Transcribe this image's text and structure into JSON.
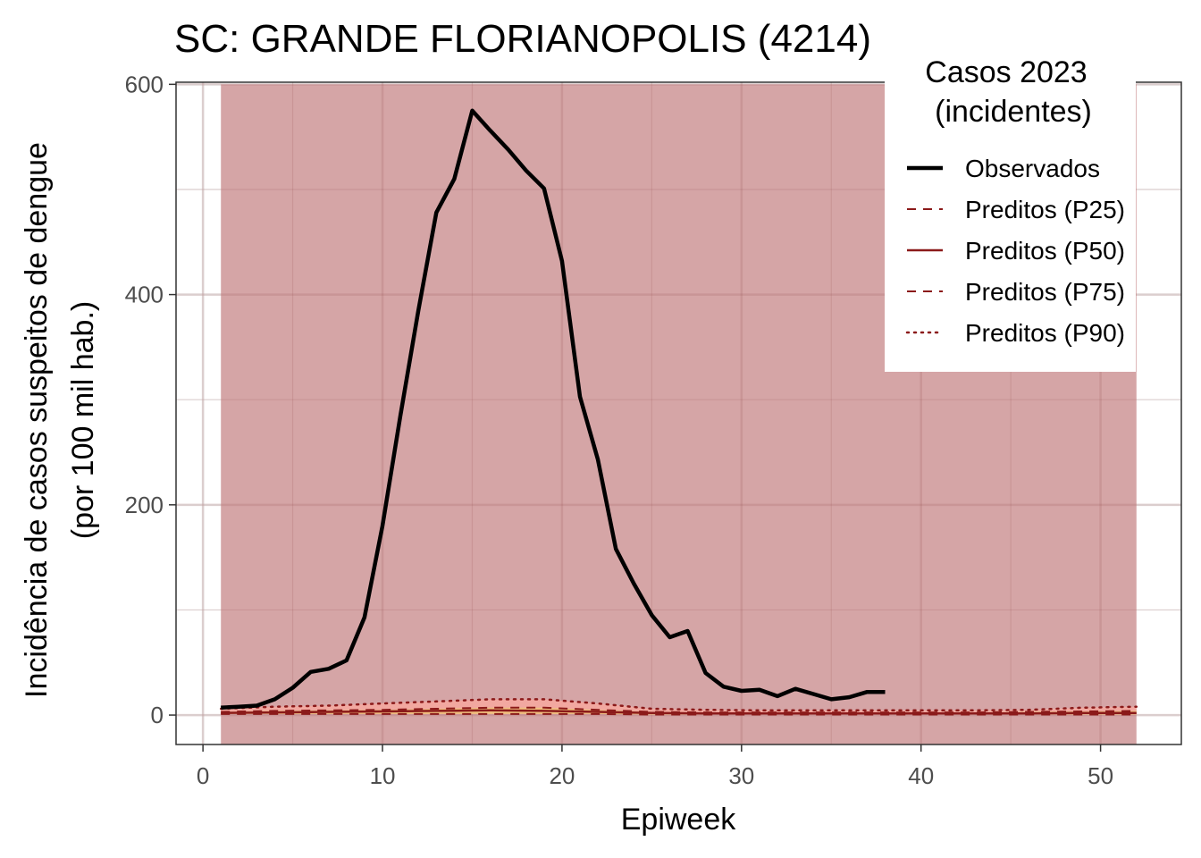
{
  "chart_data": {
    "type": "line",
    "title": "SC: GRANDE FLORIANOPOLIS (4214)",
    "xlabel": "Epiweek",
    "ylabel_line1": "Incidência de casos suspeitos de dengue",
    "ylabel_line2": "(por 100 mil hab.)",
    "xlim": [
      -1.5,
      54.5
    ],
    "ylim": [
      -28,
      602
    ],
    "xticks": [
      0,
      10,
      20,
      30,
      40,
      50
    ],
    "yticks": [
      0,
      200,
      400,
      600
    ],
    "grid": true,
    "background_band": {
      "x_start": 1,
      "x_end": 52,
      "y_top": 600,
      "color": "#d5a5a6"
    },
    "legend": {
      "title_line1": "Casos 2023",
      "title_line2": "(incidentes)",
      "position": "top-right",
      "entries": [
        {
          "label": "Observados",
          "color": "#000000",
          "style": "solid-thick"
        },
        {
          "label": "Preditos (P25)",
          "color": "#8b1a1a",
          "style": "dashed"
        },
        {
          "label": "Preditos (P50)",
          "color": "#8b1a1a",
          "style": "solid"
        },
        {
          "label": "Preditos (P75)",
          "color": "#8b1a1a",
          "style": "dashed"
        },
        {
          "label": "Preditos (P90)",
          "color": "#8b1a1a",
          "style": "dotted"
        }
      ]
    },
    "colors": {
      "observed": "#000000",
      "predicted": "#8b1a1a",
      "band_p25_p75": "#f4c27a",
      "band_p75_p90": "#f5a9a0"
    },
    "observed": {
      "x": [
        1,
        2,
        3,
        4,
        5,
        6,
        7,
        8,
        9,
        10,
        11,
        12,
        13,
        14,
        15,
        16,
        17,
        18,
        19,
        20,
        21,
        22,
        23,
        24,
        25,
        26,
        27,
        28,
        29,
        30,
        31,
        32,
        33,
        34,
        35,
        36,
        37,
        38
      ],
      "y": [
        7,
        8,
        9,
        15,
        26,
        41,
        44,
        52,
        93,
        180,
        285,
        385,
        478,
        510,
        575,
        556,
        538,
        518,
        501,
        432,
        303,
        243,
        158,
        125,
        95,
        74,
        80,
        40,
        27,
        23,
        24,
        18,
        25,
        20,
        15,
        17,
        22,
        22
      ]
    },
    "predicted": {
      "x": [
        1,
        4,
        7,
        10,
        13,
        16,
        19,
        22,
        25,
        28,
        31,
        34,
        37,
        40,
        43,
        46,
        49,
        52
      ],
      "p25": [
        1,
        1,
        1,
        1,
        1,
        1,
        1,
        1,
        0.5,
        0.5,
        0.5,
        0.5,
        0.5,
        0.5,
        0.5,
        0.5,
        0.5,
        0.5
      ],
      "p50": [
        2,
        2.5,
        3,
        3.5,
        4,
        4.5,
        4,
        3,
        2,
        1.5,
        1.5,
        1.5,
        1.5,
        1.5,
        1.5,
        1.5,
        2,
        2
      ],
      "p75": [
        3,
        4,
        4.5,
        5,
        6,
        7,
        7,
        5,
        3,
        2.5,
        2.5,
        2.5,
        2.5,
        2.5,
        2.5,
        3,
        3.5,
        4
      ],
      "p90": [
        6,
        8,
        9,
        11,
        13,
        15,
        15,
        11,
        6,
        5,
        4.5,
        4.5,
        4.5,
        4.5,
        4.5,
        5,
        7,
        8
      ]
    }
  }
}
